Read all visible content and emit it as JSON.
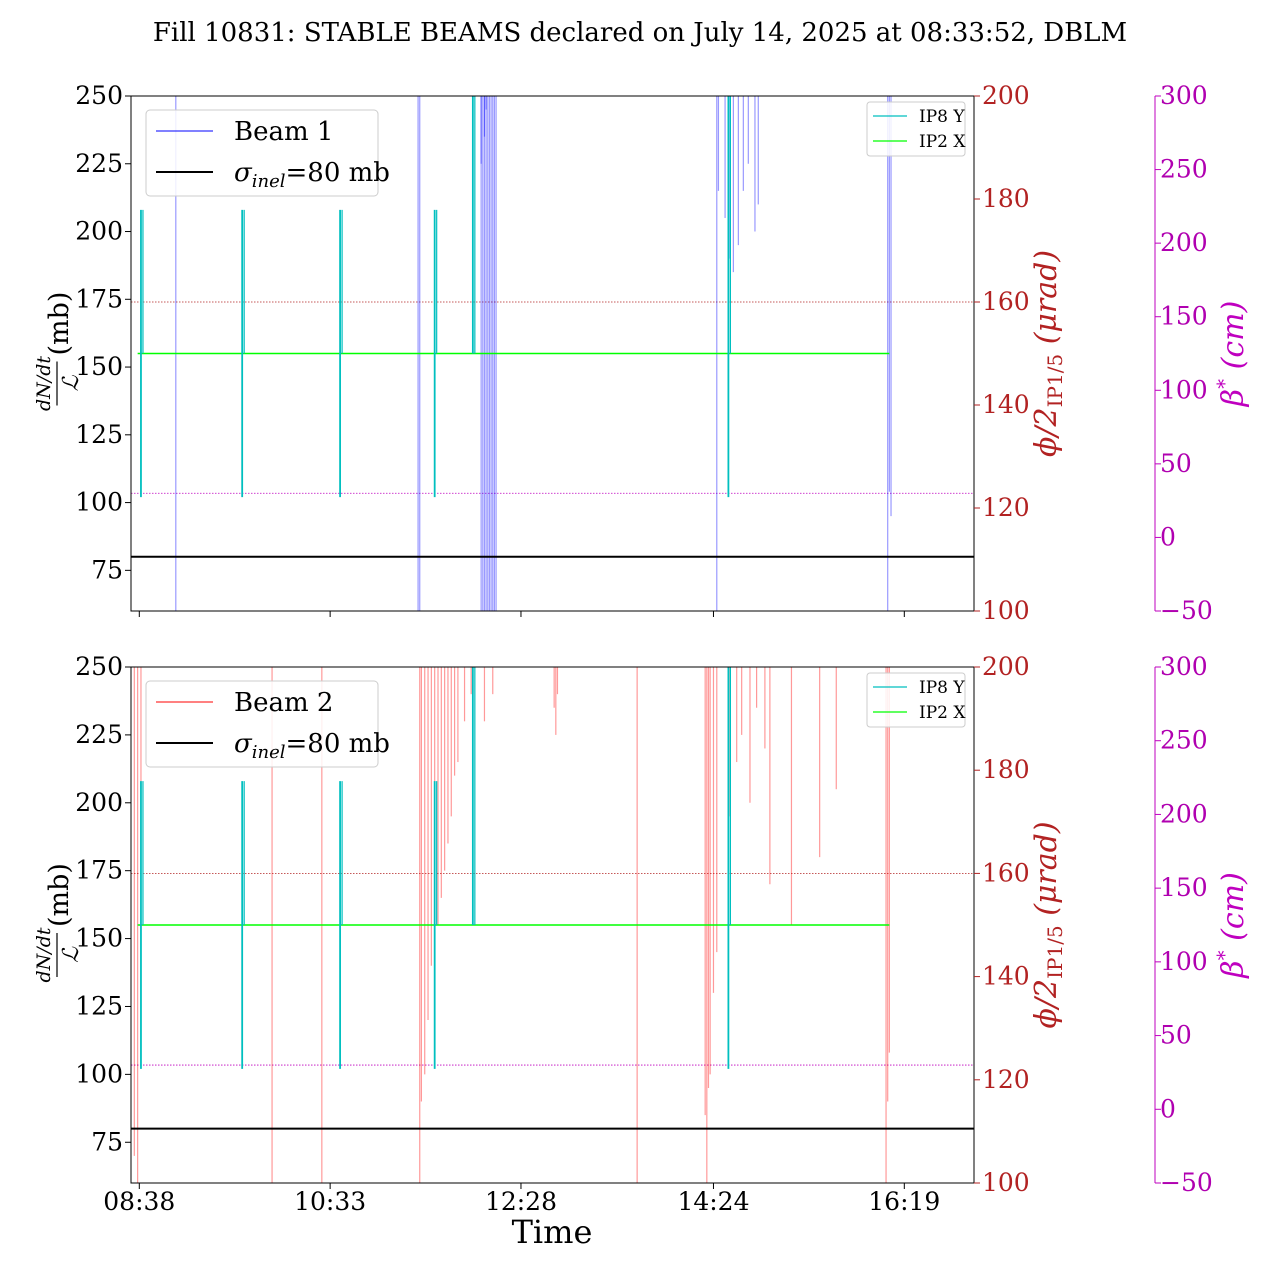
{
  "title": "Fill 10831: STABLE BEAMS declared on July 14, 2025 at 08:33:52, DBLM",
  "colors": {
    "beam1": "#0000ff",
    "beam2": "#ff0000",
    "ip8y": "#00bfbf",
    "ip2x": "#00ff00",
    "phi_axis": "#b22222",
    "beta_axis": "#bf00bf",
    "sigma": "#000000"
  },
  "chart_data": {
    "type": "line",
    "xlabel": "Time",
    "xticks": [
      "08:38",
      "10:33",
      "12:28",
      "14:24",
      "16:19"
    ],
    "xlim_minutes": [
      -5,
      503
    ],
    "left_axis": {
      "label_parts": [
        "dN/dt",
        "ℒ",
        "(mb)"
      ],
      "ylim": [
        60,
        250
      ],
      "ticks": [
        "75",
        "100",
        "125",
        "150",
        "175",
        "200",
        "225",
        "250"
      ]
    },
    "right_axis_phi": {
      "label_parts": [
        "ϕ/2",
        "IP1/5",
        "(μrad)"
      ],
      "ylim": [
        100,
        200
      ],
      "ticks": [
        "100",
        "120",
        "140",
        "160",
        "180",
        "200"
      ],
      "reference_value": 160
    },
    "right_axis_beta": {
      "label_parts": [
        "β",
        "*",
        "(cm)"
      ],
      "ylim": [
        -50,
        300
      ],
      "ticks": [
        "−50",
        "0",
        "50",
        "100",
        "150",
        "200",
        "250",
        "300"
      ],
      "reference_value": 30
    },
    "sigma_inel_mb": 80,
    "panels": [
      {
        "legend": {
          "beam": "Beam 1",
          "sigma_label": "σ",
          "sigma_sub": "inel",
          "sigma_value": "=80 mb"
        },
        "beam_color": "#0000ff",
        "beam_spikes": [
          {
            "t": 22,
            "lo": 60,
            "hi": 250
          },
          {
            "t": 168,
            "lo": 60,
            "hi": 250
          },
          {
            "t": 169,
            "lo": 60,
            "hi": 250
          },
          {
            "t": 206,
            "lo": 225,
            "hi": 250
          },
          {
            "t": 208,
            "lo": 235,
            "hi": 250
          },
          {
            "t": 209,
            "lo": 245,
            "hi": 250
          },
          {
            "t": 206,
            "lo": 60,
            "hi": 250
          },
          {
            "t": 207,
            "lo": 60,
            "hi": 250
          },
          {
            "t": 208,
            "lo": 60,
            "hi": 250
          },
          {
            "t": 209,
            "lo": 60,
            "hi": 250
          },
          {
            "t": 210,
            "lo": 60,
            "hi": 250
          },
          {
            "t": 211,
            "lo": 60,
            "hi": 250
          },
          {
            "t": 212,
            "lo": 60,
            "hi": 250
          },
          {
            "t": 213,
            "lo": 60,
            "hi": 250
          },
          {
            "t": 214,
            "lo": 60,
            "hi": 250
          },
          {
            "t": 215,
            "lo": 60,
            "hi": 250
          },
          {
            "t": 348,
            "lo": 60,
            "hi": 250
          },
          {
            "t": 349,
            "lo": 215,
            "hi": 250
          },
          {
            "t": 353,
            "lo": 205,
            "hi": 250
          },
          {
            "t": 356,
            "lo": 190,
            "hi": 250
          },
          {
            "t": 358,
            "lo": 185,
            "hi": 250
          },
          {
            "t": 361,
            "lo": 195,
            "hi": 250
          },
          {
            "t": 364,
            "lo": 215,
            "hi": 250
          },
          {
            "t": 367,
            "lo": 225,
            "hi": 250
          },
          {
            "t": 371,
            "lo": 200,
            "hi": 250
          },
          {
            "t": 373,
            "lo": 210,
            "hi": 250
          },
          {
            "t": 451,
            "lo": 60,
            "hi": 250
          },
          {
            "t": 452,
            "lo": 104,
            "hi": 250
          },
          {
            "t": 453,
            "lo": 95,
            "hi": 250
          }
        ]
      },
      {
        "legend": {
          "beam": "Beam 2",
          "sigma_label": "σ",
          "sigma_sub": "inel",
          "sigma_value": "=80 mb"
        },
        "beam_color": "#ff0000",
        "beam_spikes": [
          {
            "t": -3,
            "lo": 70,
            "hi": 250
          },
          {
            "t": -1,
            "lo": 60,
            "hi": 250
          },
          {
            "t": 1,
            "lo": 205,
            "hi": 250
          },
          {
            "t": 80,
            "lo": 60,
            "hi": 250
          },
          {
            "t": 110,
            "lo": 60,
            "hi": 250
          },
          {
            "t": 169,
            "lo": 60,
            "hi": 250
          },
          {
            "t": 170,
            "lo": 90,
            "hi": 250
          },
          {
            "t": 172,
            "lo": 100,
            "hi": 250
          },
          {
            "t": 174,
            "lo": 120,
            "hi": 250
          },
          {
            "t": 176,
            "lo": 140,
            "hi": 250
          },
          {
            "t": 178,
            "lo": 130,
            "hi": 250
          },
          {
            "t": 180,
            "lo": 155,
            "hi": 250
          },
          {
            "t": 182,
            "lo": 165,
            "hi": 250
          },
          {
            "t": 184,
            "lo": 175,
            "hi": 250
          },
          {
            "t": 186,
            "lo": 185,
            "hi": 250
          },
          {
            "t": 188,
            "lo": 195,
            "hi": 250
          },
          {
            "t": 190,
            "lo": 210,
            "hi": 250
          },
          {
            "t": 192,
            "lo": 215,
            "hi": 250
          },
          {
            "t": 196,
            "lo": 230,
            "hi": 250
          },
          {
            "t": 200,
            "lo": 240,
            "hi": 250
          },
          {
            "t": 208,
            "lo": 230,
            "hi": 250
          },
          {
            "t": 213,
            "lo": 240,
            "hi": 250
          },
          {
            "t": 250,
            "lo": 235,
            "hi": 250
          },
          {
            "t": 251,
            "lo": 225,
            "hi": 250
          },
          {
            "t": 252,
            "lo": 240,
            "hi": 250
          },
          {
            "t": 300,
            "lo": 60,
            "hi": 250
          },
          {
            "t": 341,
            "lo": 85,
            "hi": 250
          },
          {
            "t": 342,
            "lo": 60,
            "hi": 250
          },
          {
            "t": 343,
            "lo": 95,
            "hi": 250
          },
          {
            "t": 344,
            "lo": 100,
            "hi": 250
          },
          {
            "t": 346,
            "lo": 130,
            "hi": 250
          },
          {
            "t": 348,
            "lo": 145,
            "hi": 250
          },
          {
            "t": 356,
            "lo": 195,
            "hi": 250
          },
          {
            "t": 360,
            "lo": 215,
            "hi": 250
          },
          {
            "t": 363,
            "lo": 225,
            "hi": 250
          },
          {
            "t": 368,
            "lo": 200,
            "hi": 250
          },
          {
            "t": 372,
            "lo": 235,
            "hi": 250
          },
          {
            "t": 377,
            "lo": 220,
            "hi": 250
          },
          {
            "t": 380,
            "lo": 170,
            "hi": 250
          },
          {
            "t": 393,
            "lo": 155,
            "hi": 250
          },
          {
            "t": 410,
            "lo": 180,
            "hi": 250
          },
          {
            "t": 420,
            "lo": 205,
            "hi": 250
          },
          {
            "t": 450,
            "lo": 60,
            "hi": 250
          },
          {
            "t": 451,
            "lo": 90,
            "hi": 250
          },
          {
            "t": 452,
            "lo": 108,
            "hi": 250
          }
        ]
      }
    ],
    "ip_series": [
      {
        "name": "IP8 Y",
        "color": "#00bfbf"
      },
      {
        "name": "IP2 X",
        "color": "#00ff00"
      }
    ],
    "ip2x_baseline_mb": 155,
    "ip8y_spikes_mb": [
      {
        "t": 1,
        "lo": 102,
        "hi": 208
      },
      {
        "t": 62,
        "lo": 102,
        "hi": 208
      },
      {
        "t": 121,
        "lo": 102,
        "hi": 208
      },
      {
        "t": 178,
        "lo": 102,
        "hi": 208
      },
      {
        "t": 201,
        "lo": 155,
        "hi": 250
      },
      {
        "t": 355,
        "lo": 102,
        "hi": 250
      }
    ]
  }
}
